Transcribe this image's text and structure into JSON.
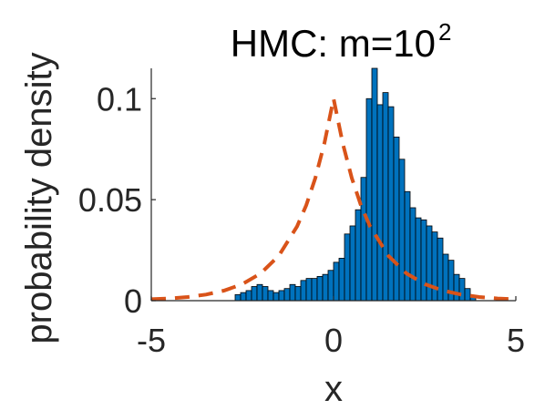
{
  "chart_data": {
    "type": "bar",
    "title": "HMC: m=10",
    "title_superscript": "2",
    "xlabel": "x",
    "ylabel": "probability density",
    "xlim": [
      -5,
      5
    ],
    "ylim": [
      0,
      0.115
    ],
    "xticks": [
      -5,
      0,
      5
    ],
    "xtick_labels": [
      "-5",
      "0",
      "5"
    ],
    "yticks": [
      0,
      0.05,
      0.1
    ],
    "ytick_labels": [
      "0",
      "0.05",
      "0.1"
    ],
    "grid": false,
    "histogram": {
      "bin_width": 0.15,
      "bin_start": -2.7,
      "values": [
        0.003,
        0.004,
        0.005,
        0.007,
        0.008,
        0.007,
        0.005,
        0.004,
        0.005,
        0.006,
        0.008,
        0.007,
        0.01,
        0.011,
        0.011,
        0.012,
        0.013,
        0.015,
        0.019,
        0.021,
        0.033,
        0.037,
        0.045,
        0.061,
        0.1,
        0.115,
        0.097,
        0.103,
        0.096,
        0.081,
        0.07,
        0.054,
        0.046,
        0.041,
        0.04,
        0.037,
        0.034,
        0.031,
        0.023,
        0.02,
        0.013,
        0.011,
        0.006,
        0.002
      ]
    },
    "series": [
      {
        "type": "line",
        "style": "dashed",
        "color": "#D95319",
        "x": [
          -5,
          -4.5,
          -4,
          -3.5,
          -3,
          -2.5,
          -2,
          -1.5,
          -1,
          -0.75,
          -0.5,
          -0.25,
          0,
          0.25,
          0.5,
          0.75,
          1,
          1.5,
          2,
          2.5,
          3,
          3.5,
          4,
          4.5,
          5
        ],
        "values": [
          0.0007,
          0.0011,
          0.0018,
          0.003,
          0.005,
          0.0082,
          0.0135,
          0.0223,
          0.0368,
          0.0472,
          0.0607,
          0.078,
          0.1,
          0.078,
          0.0607,
          0.0472,
          0.0368,
          0.0223,
          0.0135,
          0.0082,
          0.005,
          0.003,
          0.0018,
          0.0011,
          0.0007
        ]
      }
    ],
    "colors": {
      "bars": "#0072BD",
      "bar_edges": "#000000",
      "pdf": "#D95319"
    }
  }
}
